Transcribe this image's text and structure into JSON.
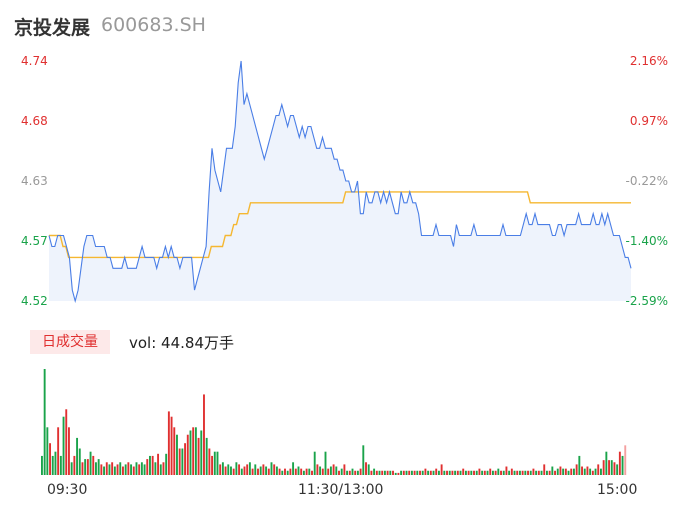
{
  "header": {
    "name": "京投发展",
    "code": "600683.SH"
  },
  "volume_panel": {
    "badge": "日成交量",
    "vol_label": "vol: 44.84万手"
  },
  "colors": {
    "price_line": "#4a7ee6",
    "avg_line": "#f5b731",
    "up": "#e03030",
    "down": "#1aa34a",
    "flat": "#999999",
    "area": "#eef3fc"
  },
  "chart_data": [
    {
      "type": "line",
      "title": "",
      "x_ticks": [
        "09:30",
        "11:30/13:00",
        "15:00"
      ],
      "y_left_ticks": [
        "4.74",
        "4.68",
        "4.63",
        "4.57",
        "4.52"
      ],
      "y_right_ticks": [
        "2.16%",
        "0.97%",
        "-0.22%",
        "-1.40%",
        "-2.59%"
      ],
      "prev_close": 4.64,
      "ylim": [
        4.52,
        4.74
      ],
      "series": [
        {
          "values": [
            4.58,
            4.57,
            4.57,
            4.58,
            4.58,
            4.58,
            4.57,
            4.56,
            4.53,
            4.52,
            4.53,
            4.55,
            4.57,
            4.58,
            4.58,
            4.58,
            4.57,
            4.57,
            4.57,
            4.57,
            4.56,
            4.56,
            4.55,
            4.55,
            4.55,
            4.55,
            4.56,
            4.55,
            4.55,
            4.55,
            4.55,
            4.56,
            4.57,
            4.56,
            4.56,
            4.56,
            4.56,
            4.55,
            4.56,
            4.56,
            4.57,
            4.56,
            4.57,
            4.56,
            4.56,
            4.55,
            4.56,
            4.56,
            4.56,
            4.56,
            4.53,
            4.54,
            4.55,
            4.56,
            4.57,
            4.62,
            4.66,
            4.64,
            4.63,
            4.62,
            4.64,
            4.66,
            4.66,
            4.66,
            4.68,
            4.72,
            4.74,
            4.7,
            4.71,
            4.7,
            4.69,
            4.68,
            4.67,
            4.66,
            4.65,
            4.66,
            4.67,
            4.68,
            4.69,
            4.69,
            4.7,
            4.69,
            4.68,
            4.69,
            4.69,
            4.68,
            4.67,
            4.68,
            4.67,
            4.68,
            4.68,
            4.67,
            4.66,
            4.66,
            4.67,
            4.66,
            4.66,
            4.66,
            4.65,
            4.65,
            4.64,
            4.64,
            4.63,
            4.63,
            4.62,
            4.62,
            4.63,
            4.6,
            4.6,
            4.62,
            4.61,
            4.61,
            4.62,
            4.62,
            4.61,
            4.62,
            4.61,
            4.62,
            4.61,
            4.6,
            4.6,
            4.62,
            4.61,
            4.61,
            4.62,
            4.61,
            4.61,
            4.6,
            4.58,
            4.58,
            4.58,
            4.58,
            4.58,
            4.59,
            4.58,
            4.58,
            4.58,
            4.58,
            4.58,
            4.57,
            4.59,
            4.58,
            4.58,
            4.58,
            4.58,
            4.58,
            4.59,
            4.58,
            4.58,
            4.58,
            4.58,
            4.58,
            4.58,
            4.58,
            4.58,
            4.58,
            4.59,
            4.58,
            4.58,
            4.58,
            4.58,
            4.58,
            4.58,
            4.59,
            4.6,
            4.59,
            4.59,
            4.6,
            4.59,
            4.59,
            4.59,
            4.59,
            4.59,
            4.58,
            4.58,
            4.59,
            4.59,
            4.58,
            4.59,
            4.59,
            4.59,
            4.59,
            4.6,
            4.59,
            4.59,
            4.59,
            4.59,
            4.6,
            4.59,
            4.59,
            4.6,
            4.59,
            4.6,
            4.59,
            4.58,
            4.58,
            4.58,
            4.57,
            4.56,
            4.56,
            4.55
          ]
        },
        {
          "values": [
            4.58,
            4.58,
            4.58,
            4.58,
            4.58,
            4.57,
            4.57,
            4.56,
            4.56,
            4.56,
            4.56,
            4.56,
            4.56,
            4.56,
            4.56,
            4.56,
            4.56,
            4.56,
            4.56,
            4.56,
            4.56,
            4.56,
            4.56,
            4.56,
            4.56,
            4.56,
            4.56,
            4.56,
            4.56,
            4.56,
            4.56,
            4.56,
            4.56,
            4.56,
            4.56,
            4.56,
            4.56,
            4.56,
            4.56,
            4.56,
            4.56,
            4.56,
            4.56,
            4.56,
            4.56,
            4.56,
            4.56,
            4.56,
            4.56,
            4.56,
            4.56,
            4.56,
            4.56,
            4.56,
            4.56,
            4.56,
            4.56,
            4.56,
            4.57,
            4.57,
            4.57,
            4.57,
            4.57,
            4.58,
            4.58,
            4.58,
            4.59,
            4.59,
            4.6,
            4.6,
            4.6,
            4.6,
            4.61,
            4.61,
            4.61,
            4.61,
            4.61,
            4.61,
            4.61,
            4.61,
            4.61,
            4.61,
            4.61,
            4.61,
            4.61,
            4.61,
            4.61,
            4.61,
            4.61,
            4.61,
            4.61,
            4.61,
            4.61,
            4.61,
            4.61,
            4.61,
            4.61,
            4.61,
            4.61,
            4.61,
            4.61,
            4.61,
            4.61,
            4.61,
            4.61,
            4.61,
            4.62,
            4.62,
            4.62,
            4.62,
            4.62,
            4.62,
            4.62,
            4.62,
            4.62,
            4.62,
            4.62,
            4.62,
            4.62,
            4.62,
            4.62,
            4.62,
            4.62,
            4.62,
            4.62,
            4.62,
            4.62,
            4.62,
            4.62,
            4.62,
            4.62,
            4.62,
            4.62,
            4.62,
            4.62,
            4.62,
            4.62,
            4.62,
            4.62,
            4.62,
            4.62,
            4.62,
            4.62,
            4.62,
            4.62,
            4.62,
            4.62,
            4.62,
            4.62,
            4.62,
            4.62,
            4.62,
            4.62,
            4.62,
            4.62,
            4.62,
            4.62,
            4.62,
            4.62,
            4.62,
            4.62,
            4.62,
            4.62,
            4.62,
            4.62,
            4.62,
            4.62,
            4.62,
            4.62,
            4.62,
            4.62,
            4.62,
            4.61,
            4.61,
            4.61,
            4.61,
            4.61,
            4.61,
            4.61,
            4.61,
            4.61,
            4.61,
            4.61,
            4.61,
            4.61,
            4.61,
            4.61,
            4.61,
            4.61,
            4.61,
            4.61,
            4.61,
            4.61,
            4.61,
            4.61,
            4.61,
            4.61,
            4.61,
            4.61,
            4.61,
            4.61,
            4.61,
            4.61,
            4.61,
            4.61,
            4.61,
            4.61,
            4.61,
            4.61
          ]
        }
      ]
    },
    {
      "type": "bar",
      "title": "",
      "unit": "万手",
      "ylim": [
        0,
        1
      ],
      "values": [
        0.18,
        1.0,
        0.45,
        0.3,
        0.18,
        0.22,
        0.45,
        0.18,
        0.55,
        0.62,
        0.45,
        0.12,
        0.18,
        0.35,
        0.25,
        0.12,
        0.15,
        0.15,
        0.22,
        0.18,
        0.12,
        0.15,
        0.1,
        0.08,
        0.12,
        0.1,
        0.12,
        0.08,
        0.1,
        0.12,
        0.08,
        0.1,
        0.12,
        0.1,
        0.08,
        0.12,
        0.1,
        0.12,
        0.1,
        0.15,
        0.18,
        0.18,
        0.12,
        0.2,
        0.1,
        0.12,
        0.2,
        0.6,
        0.55,
        0.45,
        0.38,
        0.25,
        0.25,
        0.3,
        0.38,
        0.42,
        0.45,
        0.45,
        0.35,
        0.42,
        0.76,
        0.35,
        0.25,
        0.18,
        0.22,
        0.22,
        0.1,
        0.12,
        0.08,
        0.1,
        0.08,
        0.06,
        0.12,
        0.1,
        0.06,
        0.08,
        0.1,
        0.12,
        0.06,
        0.1,
        0.06,
        0.08,
        0.1,
        0.08,
        0.06,
        0.12,
        0.1,
        0.08,
        0.06,
        0.04,
        0.06,
        0.04,
        0.06,
        0.12,
        0.06,
        0.08,
        0.06,
        0.04,
        0.06,
        0.06,
        0.04,
        0.22,
        0.1,
        0.08,
        0.06,
        0.22,
        0.06,
        0.08,
        0.1,
        0.08,
        0.04,
        0.06,
        0.1,
        0.04,
        0.04,
        0.06,
        0.04,
        0.04,
        0.06,
        0.28,
        0.12,
        0.1,
        0.04,
        0.06,
        0.04,
        0.04,
        0.04,
        0.04,
        0.04,
        0.04,
        0.04,
        0.02,
        0.02,
        0.04,
        0.04,
        0.04,
        0.04,
        0.04,
        0.04,
        0.04,
        0.04,
        0.04,
        0.06,
        0.04,
        0.04,
        0.04,
        0.06,
        0.04,
        0.1,
        0.04,
        0.04,
        0.04,
        0.04,
        0.04,
        0.04,
        0.04,
        0.06,
        0.04,
        0.04,
        0.04,
        0.04,
        0.04,
        0.06,
        0.04,
        0.04,
        0.04,
        0.06,
        0.04,
        0.04,
        0.06,
        0.04,
        0.04,
        0.08,
        0.04,
        0.06,
        0.04,
        0.04,
        0.04,
        0.04,
        0.04,
        0.04,
        0.04,
        0.06,
        0.04,
        0.04,
        0.04,
        0.1,
        0.04,
        0.04,
        0.08,
        0.04,
        0.06,
        0.08,
        0.06,
        0.06,
        0.04,
        0.06,
        0.06,
        0.1,
        0.18,
        0.08,
        0.06,
        0.08,
        0.06,
        0.04,
        0.06,
        0.1,
        0.06,
        0.14,
        0.22,
        0.14,
        0.14,
        0.12,
        0.1,
        0.22,
        0.18,
        0.28
      ],
      "colors": [
        "d",
        "d",
        "d",
        "u",
        "d",
        "d",
        "u",
        "d",
        "d",
        "u",
        "u",
        "d",
        "u",
        "d",
        "d",
        "u",
        "d",
        "u",
        "d",
        "u",
        "d",
        "d",
        "u",
        "d",
        "u",
        "d",
        "u",
        "d",
        "u",
        "d",
        "u",
        "d",
        "u",
        "d",
        "u",
        "d",
        "u",
        "d",
        "d",
        "u",
        "d",
        "u",
        "d",
        "u",
        "d",
        "u",
        "d",
        "u",
        "u",
        "u",
        "d",
        "u",
        "d",
        "u",
        "u",
        "d",
        "u",
        "d",
        "u",
        "d",
        "u",
        "d",
        "u",
        "u",
        "d",
        "d",
        "u",
        "d",
        "u",
        "d",
        "d",
        "u",
        "d",
        "u",
        "d",
        "u",
        "u",
        "d",
        "u",
        "d",
        "u",
        "d",
        "u",
        "d",
        "u",
        "d",
        "u",
        "d",
        "u",
        "d",
        "u",
        "d",
        "u",
        "d",
        "u",
        "d",
        "u",
        "d",
        "u",
        "d",
        "u",
        "d",
        "u",
        "d",
        "u",
        "d",
        "u",
        "d",
        "u",
        "d",
        "u",
        "d",
        "u",
        "d",
        "u",
        "d",
        "u",
        "d",
        "u",
        "d",
        "u",
        "d",
        "u",
        "d",
        "u",
        "d",
        "u",
        "d",
        "u",
        "d",
        "u",
        "d",
        "u",
        "d",
        "u",
        "d",
        "u",
        "d",
        "u",
        "d",
        "u",
        "d",
        "u",
        "d",
        "u",
        "d",
        "u",
        "d",
        "u",
        "d",
        "u",
        "d",
        "u",
        "d",
        "u",
        "d",
        "u",
        "d",
        "u",
        "d",
        "u",
        "d",
        "u",
        "d",
        "u",
        "d",
        "u",
        "d",
        "u",
        "d",
        "u",
        "d",
        "u",
        "d",
        "u",
        "d",
        "u",
        "d",
        "u",
        "d",
        "u",
        "d",
        "u",
        "d",
        "u",
        "d",
        "u",
        "d",
        "u",
        "d",
        "u",
        "d",
        "u",
        "d",
        "u",
        "d",
        "u",
        "d",
        "u",
        "d",
        "u",
        "d",
        "u",
        "d",
        "u",
        "d",
        "u",
        "d",
        "u",
        "d",
        "u",
        "d",
        "u",
        "d",
        "u",
        "d",
        "u",
        "d",
        "u",
        "d",
        "u",
        "d",
        "u",
        "d",
        "u",
        "d"
      ]
    }
  ]
}
